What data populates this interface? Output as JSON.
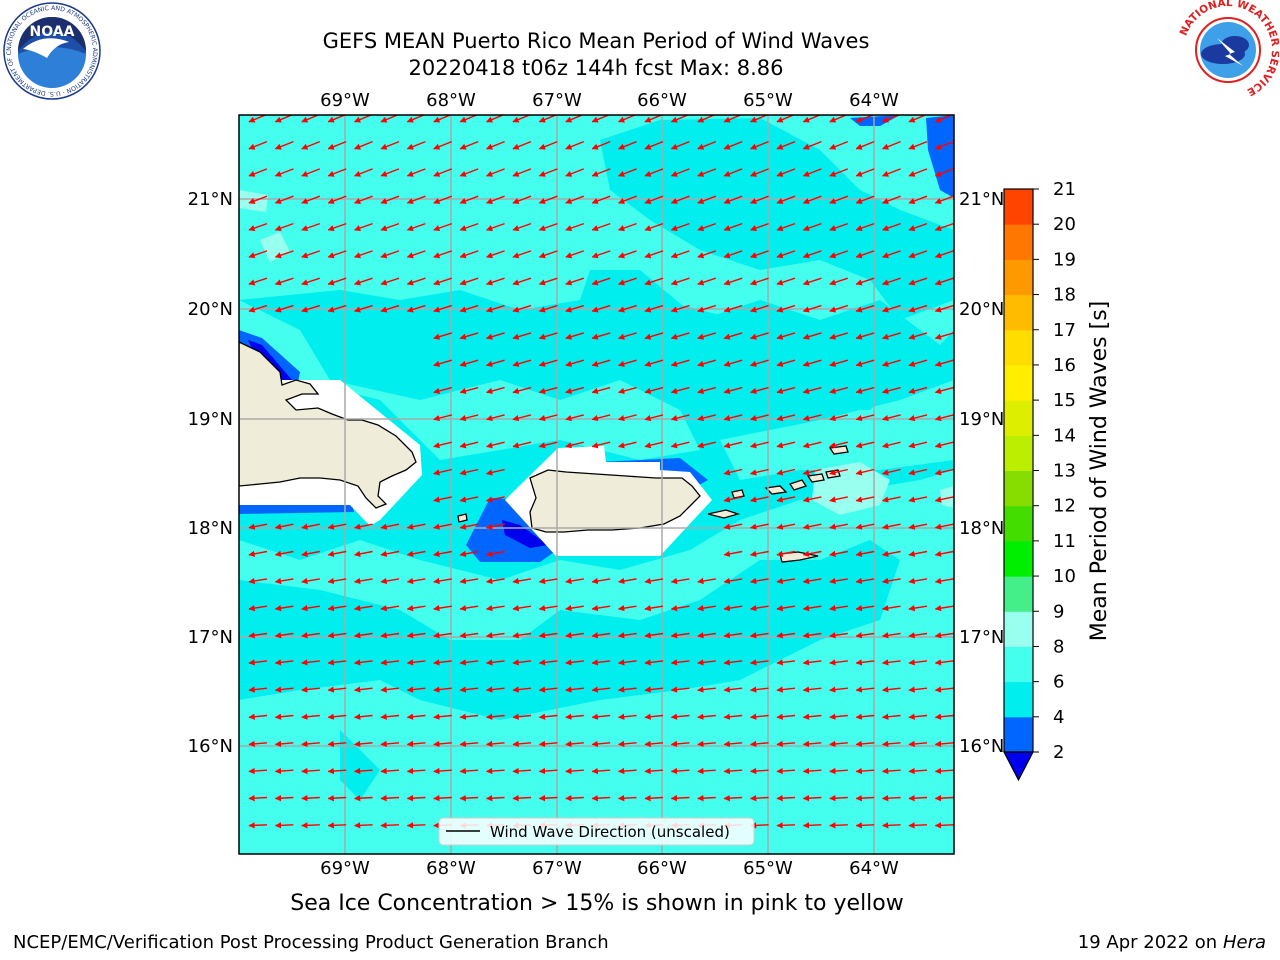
{
  "title": {
    "line1": "GEFS MEAN Puerto Rico Mean Period of Wind Waves",
    "line2": "20220418 t06z 144h fcst   Max: 8.86"
  },
  "logos": {
    "noaa_text": "NOAA",
    "noaa_ring": "NATIONAL OCEANIC AND ATMOSPHERIC ADMINISTRATION · U.S. DEPARTMENT OF COMMERCE",
    "nws_ring": "NATIONAL WEATHER SERVICE"
  },
  "map": {
    "lon_labels": [
      "69°W",
      "68°W",
      "67°W",
      "66°W",
      "65°W",
      "64°W"
    ],
    "lat_labels": [
      "21°N",
      "20°N",
      "19°N",
      "18°N",
      "17°N",
      "16°N"
    ],
    "lon_range": [
      -70.0,
      -63.25
    ],
    "lat_range": [
      15.0,
      21.75
    ],
    "legend_label": "Wind Wave Direction (unscaled)",
    "arrow_color": "#ff0000",
    "land_color": "#efedda",
    "ocean_base_color": "#00eeee"
  },
  "colorbar": {
    "label": "Mean Period of Wind Waves [s]",
    "ticks": [
      "2",
      "4",
      "6",
      "8",
      "9",
      "10",
      "11",
      "12",
      "13",
      "14",
      "15",
      "16",
      "17",
      "18",
      "19",
      "20",
      "21"
    ],
    "colors": [
      "#0066ff",
      "#00eeee",
      "#44ffee",
      "#99ffee",
      "#44ee88",
      "#00ee00",
      "#44dd00",
      "#88dd00",
      "#bbee00",
      "#ddee00",
      "#ffee00",
      "#ffdd00",
      "#ffbb00",
      "#ff9900",
      "#ff7700",
      "#ff4400",
      "#ff1100",
      "#ee0000"
    ],
    "under_color": "#0000ee"
  },
  "note": "Sea Ice Concentration > 15% is shown in pink to yellow",
  "footer": {
    "left": "NCEP/EMC/Verification Post Processing Product Generation Branch",
    "right_prefix": "19 Apr 2022 on ",
    "right_host": "Hera"
  }
}
